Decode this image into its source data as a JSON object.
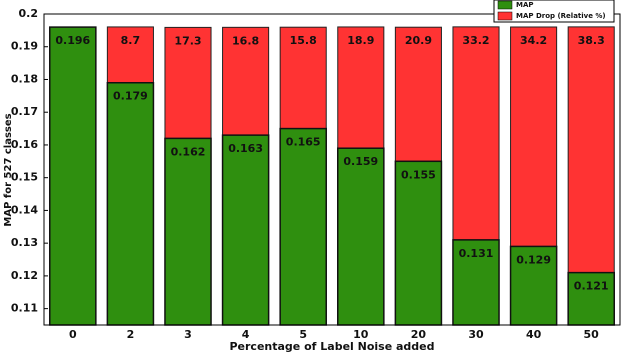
{
  "chart_data": {
    "type": "bar",
    "x_label": "Percentage of Label Noise added",
    "y_label": "MAP for 527 classes",
    "categories": [
      "0",
      "2",
      "3",
      "4",
      "5",
      "10",
      "20",
      "30",
      "40",
      "50"
    ],
    "series": [
      {
        "name": "MAP",
        "color": "#2f8f0f",
        "values": [
          0.196,
          0.179,
          0.162,
          0.163,
          0.165,
          0.159,
          0.155,
          0.131,
          0.129,
          0.121
        ]
      },
      {
        "name": "MAP Drop (Relative %)",
        "color": "#ff3333",
        "values": [
          null,
          8.7,
          17.3,
          16.8,
          15.8,
          18.9,
          20.9,
          33.2,
          34.2,
          38.3
        ]
      }
    ],
    "ylim": [
      0.105,
      0.2
    ],
    "yticks": [
      0.11,
      0.12,
      0.13,
      0.14,
      0.15,
      0.16,
      0.17,
      0.18,
      0.19,
      0.2
    ],
    "grid": false,
    "legend": "upper right"
  }
}
